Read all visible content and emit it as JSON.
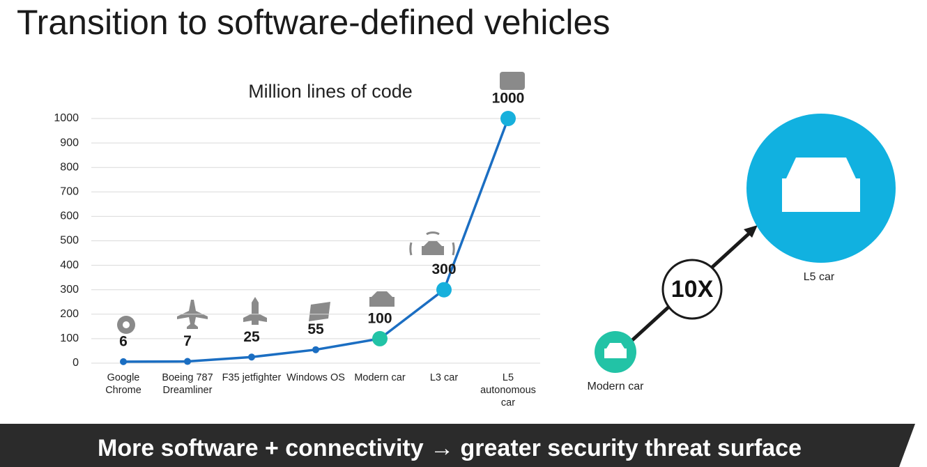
{
  "title": "Transition to software-defined vehicles",
  "chart_data": {
    "type": "line",
    "title": "Million lines of code",
    "categories": [
      "Google Chrome",
      "Boeing 787 Dreamliner",
      "F35 jetfighter",
      "Windows OS",
      "Modern car",
      "L3 car",
      "L5 autonomous car"
    ],
    "series": [
      {
        "name": "Million lines of code",
        "color": "#1b6ec2",
        "values": [
          6,
          7,
          25,
          55,
          100,
          300,
          1000
        ]
      }
    ],
    "point_colors": [
      "#1b6ec2",
      "#1b6ec2",
      "#1b6ec2",
      "#1b6ec2",
      "#22c3a6",
      "#17b0dc",
      "#17b0dc"
    ],
    "ylim": [
      0,
      1000
    ],
    "yticks": [
      0,
      100,
      200,
      300,
      400,
      500,
      600,
      700,
      800,
      900,
      1000
    ],
    "grid": true
  },
  "comparison": {
    "from_label": "Modern car",
    "to_label": "L5 car",
    "factor": "10X"
  },
  "banner": "More software + connectivity → greater security threat surface"
}
